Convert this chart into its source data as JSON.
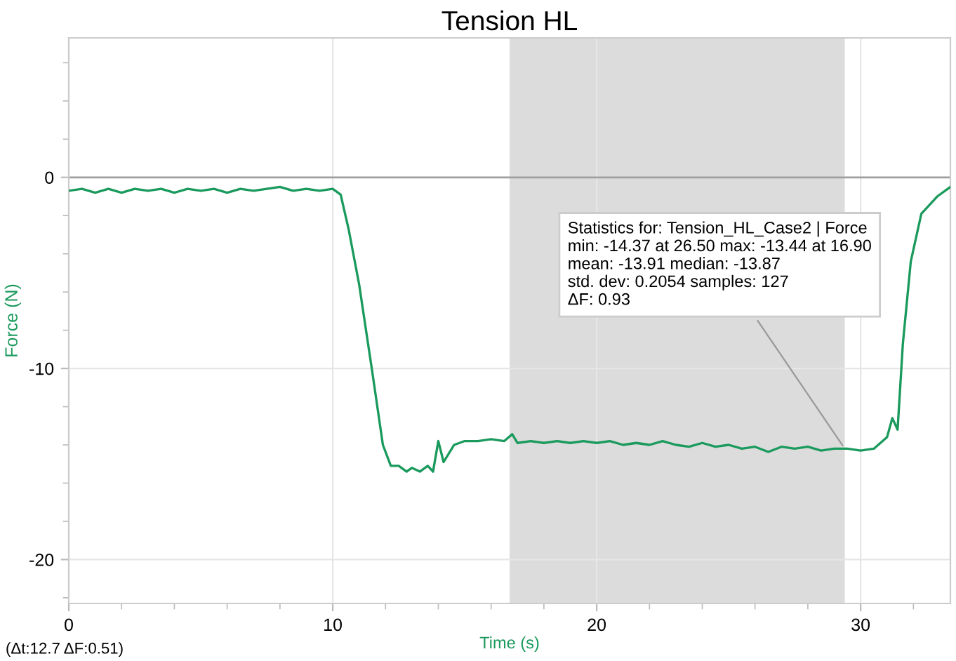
{
  "chart_data": {
    "type": "line",
    "title": "Tension HL",
    "xlabel": "Time (s)",
    "ylabel": "Force (N)",
    "x": [
      0,
      0.5,
      1,
      1.5,
      2,
      2.5,
      3,
      3.5,
      4,
      4.5,
      5,
      5.5,
      6,
      6.5,
      7,
      7.5,
      8,
      8.5,
      9,
      9.5,
      10,
      10.3,
      10.6,
      11.0,
      11.5,
      11.9,
      12.2,
      12.5,
      12.8,
      13.0,
      13.3,
      13.6,
      13.8,
      14.0,
      14.2,
      14.6,
      15.0,
      15.5,
      16.0,
      16.5,
      16.8,
      17.0,
      17.5,
      18.0,
      18.5,
      19.0,
      19.5,
      20.0,
      20.5,
      21.0,
      21.5,
      22.0,
      22.5,
      23.0,
      23.5,
      24.0,
      24.5,
      25.0,
      25.5,
      26.0,
      26.5,
      27.0,
      27.5,
      28.0,
      28.5,
      29.0,
      29.5,
      30.0,
      30.5,
      31.0,
      31.2,
      31.4,
      31.6,
      31.9,
      32.3,
      32.9,
      33.4
    ],
    "series": [
      {
        "color": "#1a9a5c",
        "values": [
          -0.7,
          -0.6,
          -0.8,
          -0.6,
          -0.8,
          -0.6,
          -0.7,
          -0.6,
          -0.8,
          -0.6,
          -0.7,
          -0.6,
          -0.8,
          -0.6,
          -0.7,
          -0.6,
          -0.5,
          -0.7,
          -0.6,
          -0.7,
          -0.6,
          -0.9,
          -2.7,
          -5.6,
          -10.2,
          -14.0,
          -15.1,
          -15.1,
          -15.4,
          -15.2,
          -15.4,
          -15.1,
          -15.4,
          -13.8,
          -14.9,
          -14.0,
          -13.8,
          -13.8,
          -13.7,
          -13.8,
          -13.44,
          -13.9,
          -13.8,
          -13.9,
          -13.8,
          -13.9,
          -13.8,
          -13.9,
          -13.8,
          -14.0,
          -13.9,
          -14.0,
          -13.8,
          -14.0,
          -14.1,
          -13.9,
          -14.1,
          -14.0,
          -14.2,
          -14.1,
          -14.37,
          -14.1,
          -14.2,
          -14.1,
          -14.3,
          -14.2,
          -14.2,
          -14.3,
          -14.2,
          -13.6,
          -12.6,
          -13.2,
          -8.7,
          -4.4,
          -1.9,
          -1.0,
          -0.5
        ]
      }
    ],
    "xlim": [
      0,
      33.4
    ],
    "ylim": [
      -22.3,
      7.3
    ],
    "xticks": [
      0,
      {
        "value": 2,
        "label": null
      },
      {
        "value": 4,
        "label": null
      },
      {
        "value": 6,
        "label": null
      },
      {
        "value": 8,
        "label": null
      },
      10,
      {
        "value": 12,
        "label": null
      },
      {
        "value": 14,
        "label": null
      },
      {
        "value": 16,
        "label": null
      },
      {
        "value": 18,
        "label": null
      },
      20,
      {
        "value": 22,
        "label": null
      },
      {
        "value": 24,
        "label": null
      },
      {
        "value": 26,
        "label": null
      },
      {
        "value": 28,
        "label": null
      },
      30,
      {
        "value": 32,
        "label": null
      }
    ],
    "yticks": [
      {
        "value": -22,
        "label": null
      },
      -20,
      {
        "value": -18,
        "label": null
      },
      {
        "value": -16,
        "label": null
      },
      {
        "value": -14,
        "label": null
      },
      {
        "value": -12,
        "label": null
      },
      -10,
      {
        "value": -8,
        "label": null
      },
      {
        "value": -6,
        "label": null
      },
      {
        "value": -4,
        "label": null
      },
      {
        "value": -2,
        "label": null
      },
      0,
      {
        "value": 2,
        "label": null
      },
      {
        "value": 4,
        "label": null
      },
      {
        "value": 6,
        "label": null
      }
    ],
    "grid": true,
    "legend": false,
    "marker": "none",
    "line_style": "solid",
    "ref_lines": [
      {
        "axis": "y",
        "value": 0,
        "label": null,
        "color": "#a0a0a0"
      }
    ],
    "bands": [
      {
        "axis": "x",
        "from": 16.7,
        "to": 29.4,
        "label": null,
        "color": "#dcdcdc"
      }
    ],
    "annotations": [
      {
        "text": "Statistics for: Tension_HL_Case2 | Force\nmin: -14.37 at 26.50 max: -13.44 at 16.90\nmean: -13.91 median: -13.87\nstd. dev: 0.2054 samples: 127\nΔF: 0.93",
        "x": 29.4,
        "y": -14.2
      },
      "(Δt:12.7 ΔF:0.51)"
    ]
  }
}
